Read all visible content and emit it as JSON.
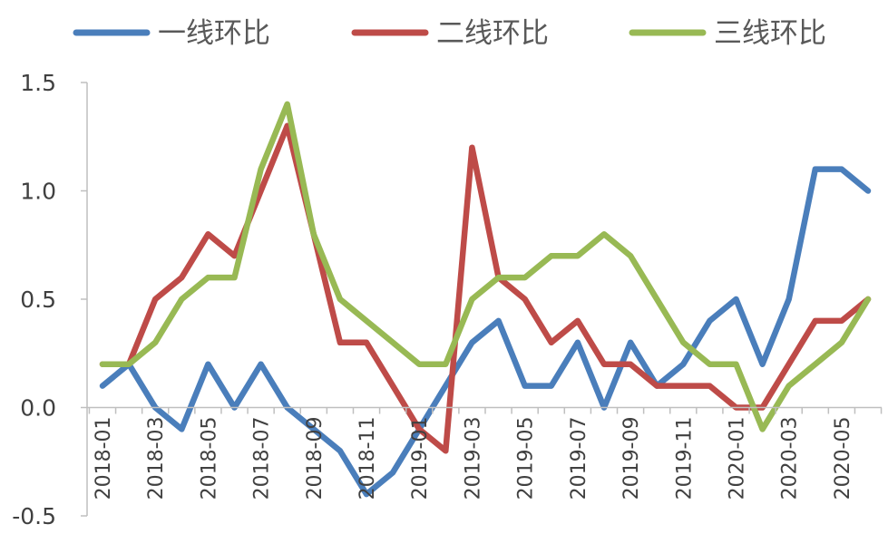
{
  "chart_data": {
    "type": "line",
    "x": [
      "2018-01",
      "2018-02",
      "2018-03",
      "2018-04",
      "2018-05",
      "2018-06",
      "2018-07",
      "2018-08",
      "2018-09",
      "2018-10",
      "2018-11",
      "2018-12",
      "2019-01",
      "2019-02",
      "2019-03",
      "2019-04",
      "2019-05",
      "2019-06",
      "2019-07",
      "2019-08",
      "2019-09",
      "2019-10",
      "2019-11",
      "2019-12",
      "2020-01",
      "2020-02",
      "2020-03",
      "2020-04",
      "2020-05",
      "2020-06"
    ],
    "x_tick_labels": [
      "2018-01",
      "2018-03",
      "2018-05",
      "2018-07",
      "2018-09",
      "2018-11",
      "2019-01",
      "2019-03",
      "2019-05",
      "2019-07",
      "2019-09",
      "2019-11",
      "2020-01",
      "2020-03",
      "2020-05"
    ],
    "y_tick_labels": [
      "1.5",
      "1.0",
      "0.5",
      "0.0",
      "-0.5"
    ],
    "ylim": [
      -0.5,
      1.5
    ],
    "legend_position": "top",
    "grid": false,
    "series": [
      {
        "name": "一线环比",
        "color": "#4a7ebb",
        "values": [
          0.1,
          0.2,
          0.0,
          -0.1,
          0.2,
          0.0,
          0.2,
          0.0,
          -0.1,
          -0.2,
          -0.4,
          -0.3,
          -0.1,
          0.1,
          0.3,
          0.4,
          0.1,
          0.1,
          0.3,
          0.0,
          0.3,
          0.1,
          0.2,
          0.4,
          0.5,
          0.2,
          0.5,
          1.1,
          1.1,
          1.0
        ]
      },
      {
        "name": "二线环比",
        "color": "#be4b48",
        "values": [
          0.2,
          0.2,
          0.5,
          0.6,
          0.8,
          0.7,
          1.0,
          1.3,
          0.8,
          0.3,
          0.3,
          0.1,
          -0.1,
          -0.2,
          1.2,
          0.6,
          0.5,
          0.3,
          0.4,
          0.2,
          0.2,
          0.1,
          0.1,
          0.1,
          0.0,
          0.0,
          0.2,
          0.4,
          0.4,
          0.5
        ]
      },
      {
        "name": "三线环比",
        "color": "#98b954",
        "values": [
          0.2,
          0.2,
          0.3,
          0.5,
          0.6,
          0.6,
          1.1,
          1.4,
          0.8,
          0.5,
          0.4,
          0.3,
          0.2,
          0.2,
          0.5,
          0.6,
          0.6,
          0.7,
          0.7,
          0.8,
          0.7,
          0.5,
          0.3,
          0.2,
          0.2,
          -0.1,
          0.1,
          0.2,
          0.3,
          0.5
        ]
      }
    ]
  }
}
